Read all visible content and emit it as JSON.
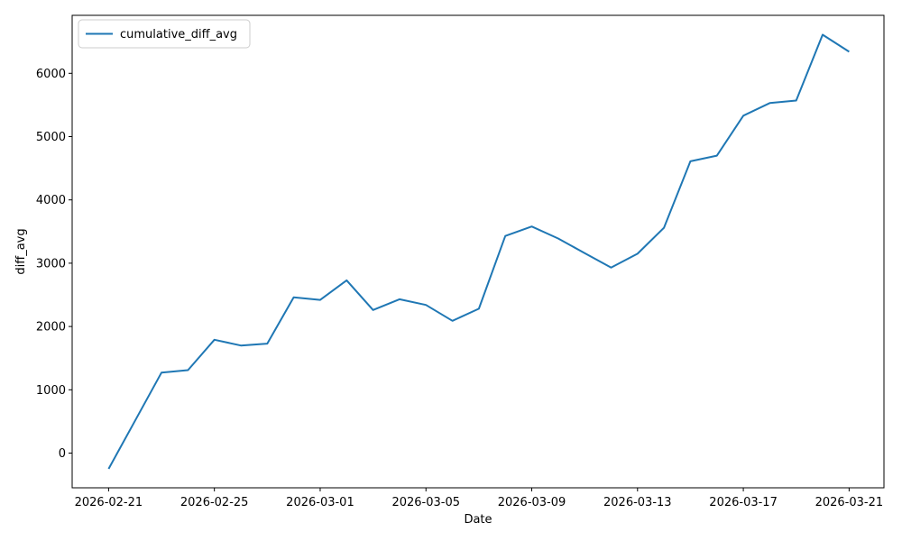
{
  "colors": {
    "line": "#1f77b4",
    "spine": "#000000",
    "legend_border": "#cccccc",
    "background": "#ffffff"
  },
  "chart_data": {
    "type": "line",
    "title": "",
    "xlabel": "Date",
    "ylabel": "diff_avg",
    "grid": false,
    "legend": {
      "position": "upper-left",
      "entries": [
        "cumulative_diff_avg"
      ]
    },
    "x": [
      "2026-02-21",
      "2026-02-22",
      "2026-02-23",
      "2026-02-24",
      "2026-02-25",
      "2026-02-26",
      "2026-02-27",
      "2026-02-28",
      "2026-03-01",
      "2026-03-02",
      "2026-03-03",
      "2026-03-04",
      "2026-03-05",
      "2026-03-06",
      "2026-03-07",
      "2026-03-08",
      "2026-03-09",
      "2026-03-10",
      "2026-03-11",
      "2026-03-12",
      "2026-03-13",
      "2026-03-14",
      "2026-03-15",
      "2026-03-16",
      "2026-03-17",
      "2026-03-18",
      "2026-03-19",
      "2026-03-20",
      "2026-03-21"
    ],
    "series": [
      {
        "name": "cumulative_diff_avg",
        "color": "#1f77b4",
        "values": [
          -250,
          510,
          1270,
          1310,
          1790,
          1700,
          1730,
          2460,
          2420,
          2730,
          2260,
          2430,
          2340,
          2090,
          2280,
          3430,
          3580,
          3390,
          3160,
          2930,
          3150,
          3560,
          4610,
          4700,
          5330,
          5530,
          5570,
          6610,
          6340
        ]
      }
    ],
    "x_ticks": [
      "2026-02-21",
      "2026-02-25",
      "2026-03-01",
      "2026-03-05",
      "2026-03-09",
      "2026-03-13",
      "2026-03-17",
      "2026-03-21"
    ],
    "y_ticks": [
      0,
      1000,
      2000,
      3000,
      4000,
      5000,
      6000
    ],
    "ylim": [
      -548,
      6916
    ],
    "xlim_days": [
      -1.38,
      29.32
    ]
  }
}
